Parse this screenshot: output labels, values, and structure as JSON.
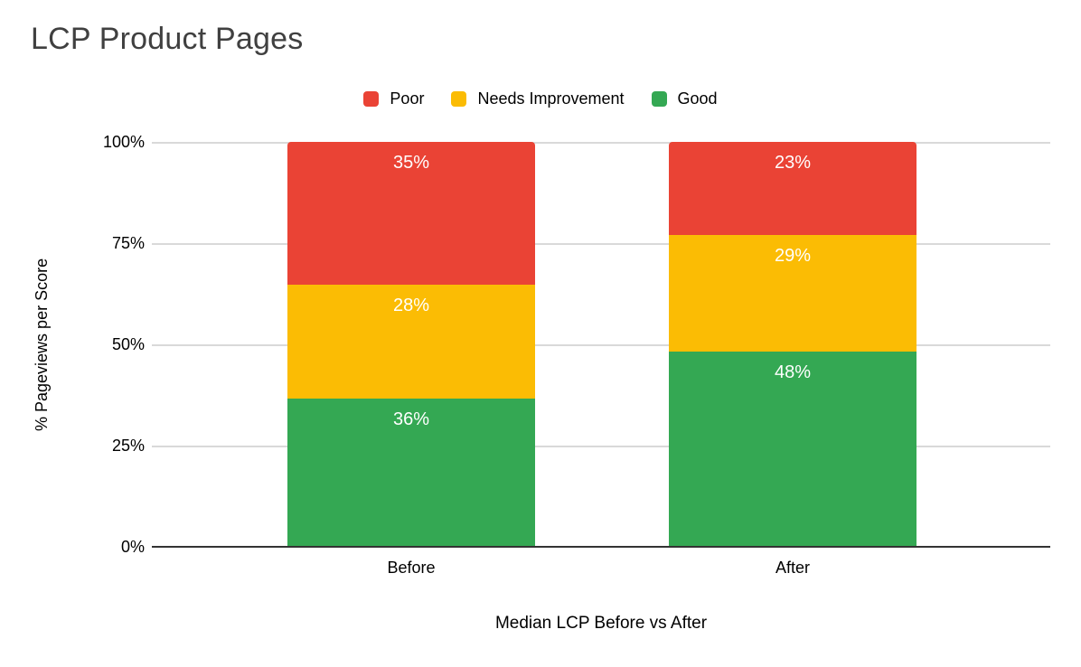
{
  "title": "LCP Product Pages",
  "chart_data": {
    "type": "bar",
    "stacked": true,
    "title": "LCP Product Pages",
    "categories": [
      "Before",
      "After"
    ],
    "series": [
      {
        "name": "Poor",
        "color": "#EA4335",
        "values": [
          35,
          23
        ]
      },
      {
        "name": "Needs Improvement",
        "color": "#FBBC04",
        "values": [
          28,
          29
        ]
      },
      {
        "name": "Good",
        "color": "#34A853",
        "values": [
          36,
          48
        ]
      }
    ],
    "xlabel": "Median LCP Before vs After",
    "ylabel": "% Pageviews per Score",
    "ylim": [
      0,
      100
    ],
    "y_ticks_top_to_bottom": [
      "100%",
      "75%",
      "50%",
      "25%",
      "0%"
    ],
    "grid": true,
    "legend_position": "top",
    "data_labels": "value_percent_inside_segment_top",
    "data_label_suffix": "%"
  },
  "colors": {
    "background": "#FFFFFF",
    "title_text": "#404040",
    "gridline": "#D9D9D9",
    "axis_line": "#333333",
    "tick_text": "#000000",
    "data_label_text": "#FFFFFF",
    "poor": "#EA4335",
    "needs_improvement": "#FBBC04",
    "good": "#34A853"
  }
}
